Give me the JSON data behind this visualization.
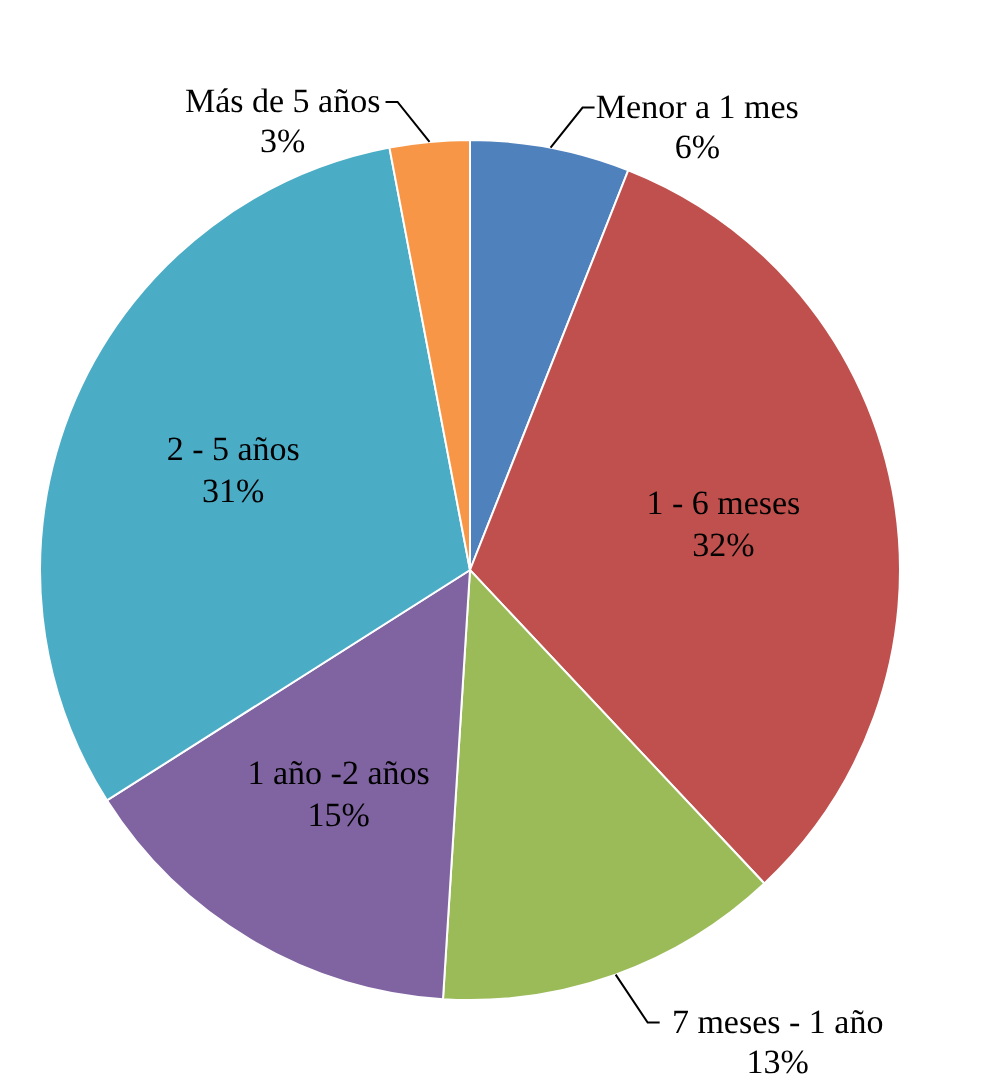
{
  "chart_data": {
    "type": "pie",
    "categories": [
      "Menor a 1 mes",
      "1 - 6 meses",
      "7 meses - 1 año",
      "1 año -2 años",
      "2 - 5 años",
      "Más de 5 años"
    ],
    "values": [
      6,
      32,
      13,
      15,
      31,
      3
    ],
    "value_labels": [
      "6%",
      "32%",
      "13%",
      "15%",
      "31%",
      "3%"
    ],
    "colors": [
      "#4f81bd",
      "#c0504d",
      "#9bbb59",
      "#8064a2",
      "#4bacc6",
      "#f79646"
    ]
  }
}
